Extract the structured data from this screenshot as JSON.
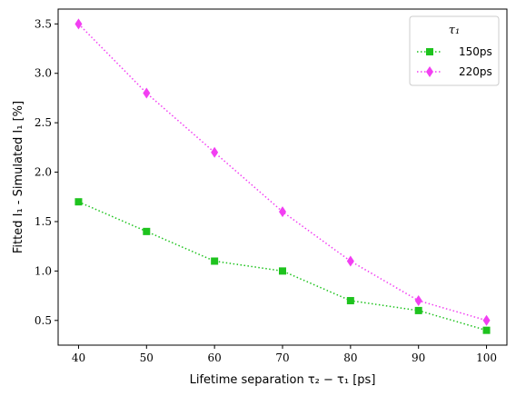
{
  "chart_data": {
    "type": "line",
    "x": [
      40,
      50,
      60,
      70,
      80,
      90,
      100
    ],
    "series": [
      {
        "name": "150ps",
        "values": [
          1.7,
          1.4,
          1.1,
          1.0,
          0.7,
          0.6,
          0.4
        ],
        "color": "#1ec31e",
        "marker": "square"
      },
      {
        "name": "220ps",
        "values": [
          3.5,
          2.8,
          2.2,
          1.6,
          1.1,
          0.7,
          0.5
        ],
        "color": "#f23ff2",
        "marker": "diamond"
      }
    ],
    "xlabel": "Lifetime separation τ₂ − τ₁ [ps]",
    "ylabel": "Fitted I₁ - Simulated I₁ [%]",
    "xlim": [
      37,
      103
    ],
    "ylim": [
      0.25,
      3.65
    ],
    "xticks": [
      "40",
      "50",
      "60",
      "70",
      "80",
      "90",
      "100"
    ],
    "xtick_values": [
      40,
      50,
      60,
      70,
      80,
      90,
      100
    ],
    "yticks": [
      "0.5",
      "1.0",
      "1.5",
      "2.0",
      "2.5",
      "3.0",
      "3.5"
    ],
    "ytick_values": [
      0.5,
      1.0,
      1.5,
      2.0,
      2.5,
      3.0,
      3.5
    ],
    "legend_title": "τ₁",
    "legend_position": "top-right",
    "line_style": "dotted",
    "grid": false
  }
}
